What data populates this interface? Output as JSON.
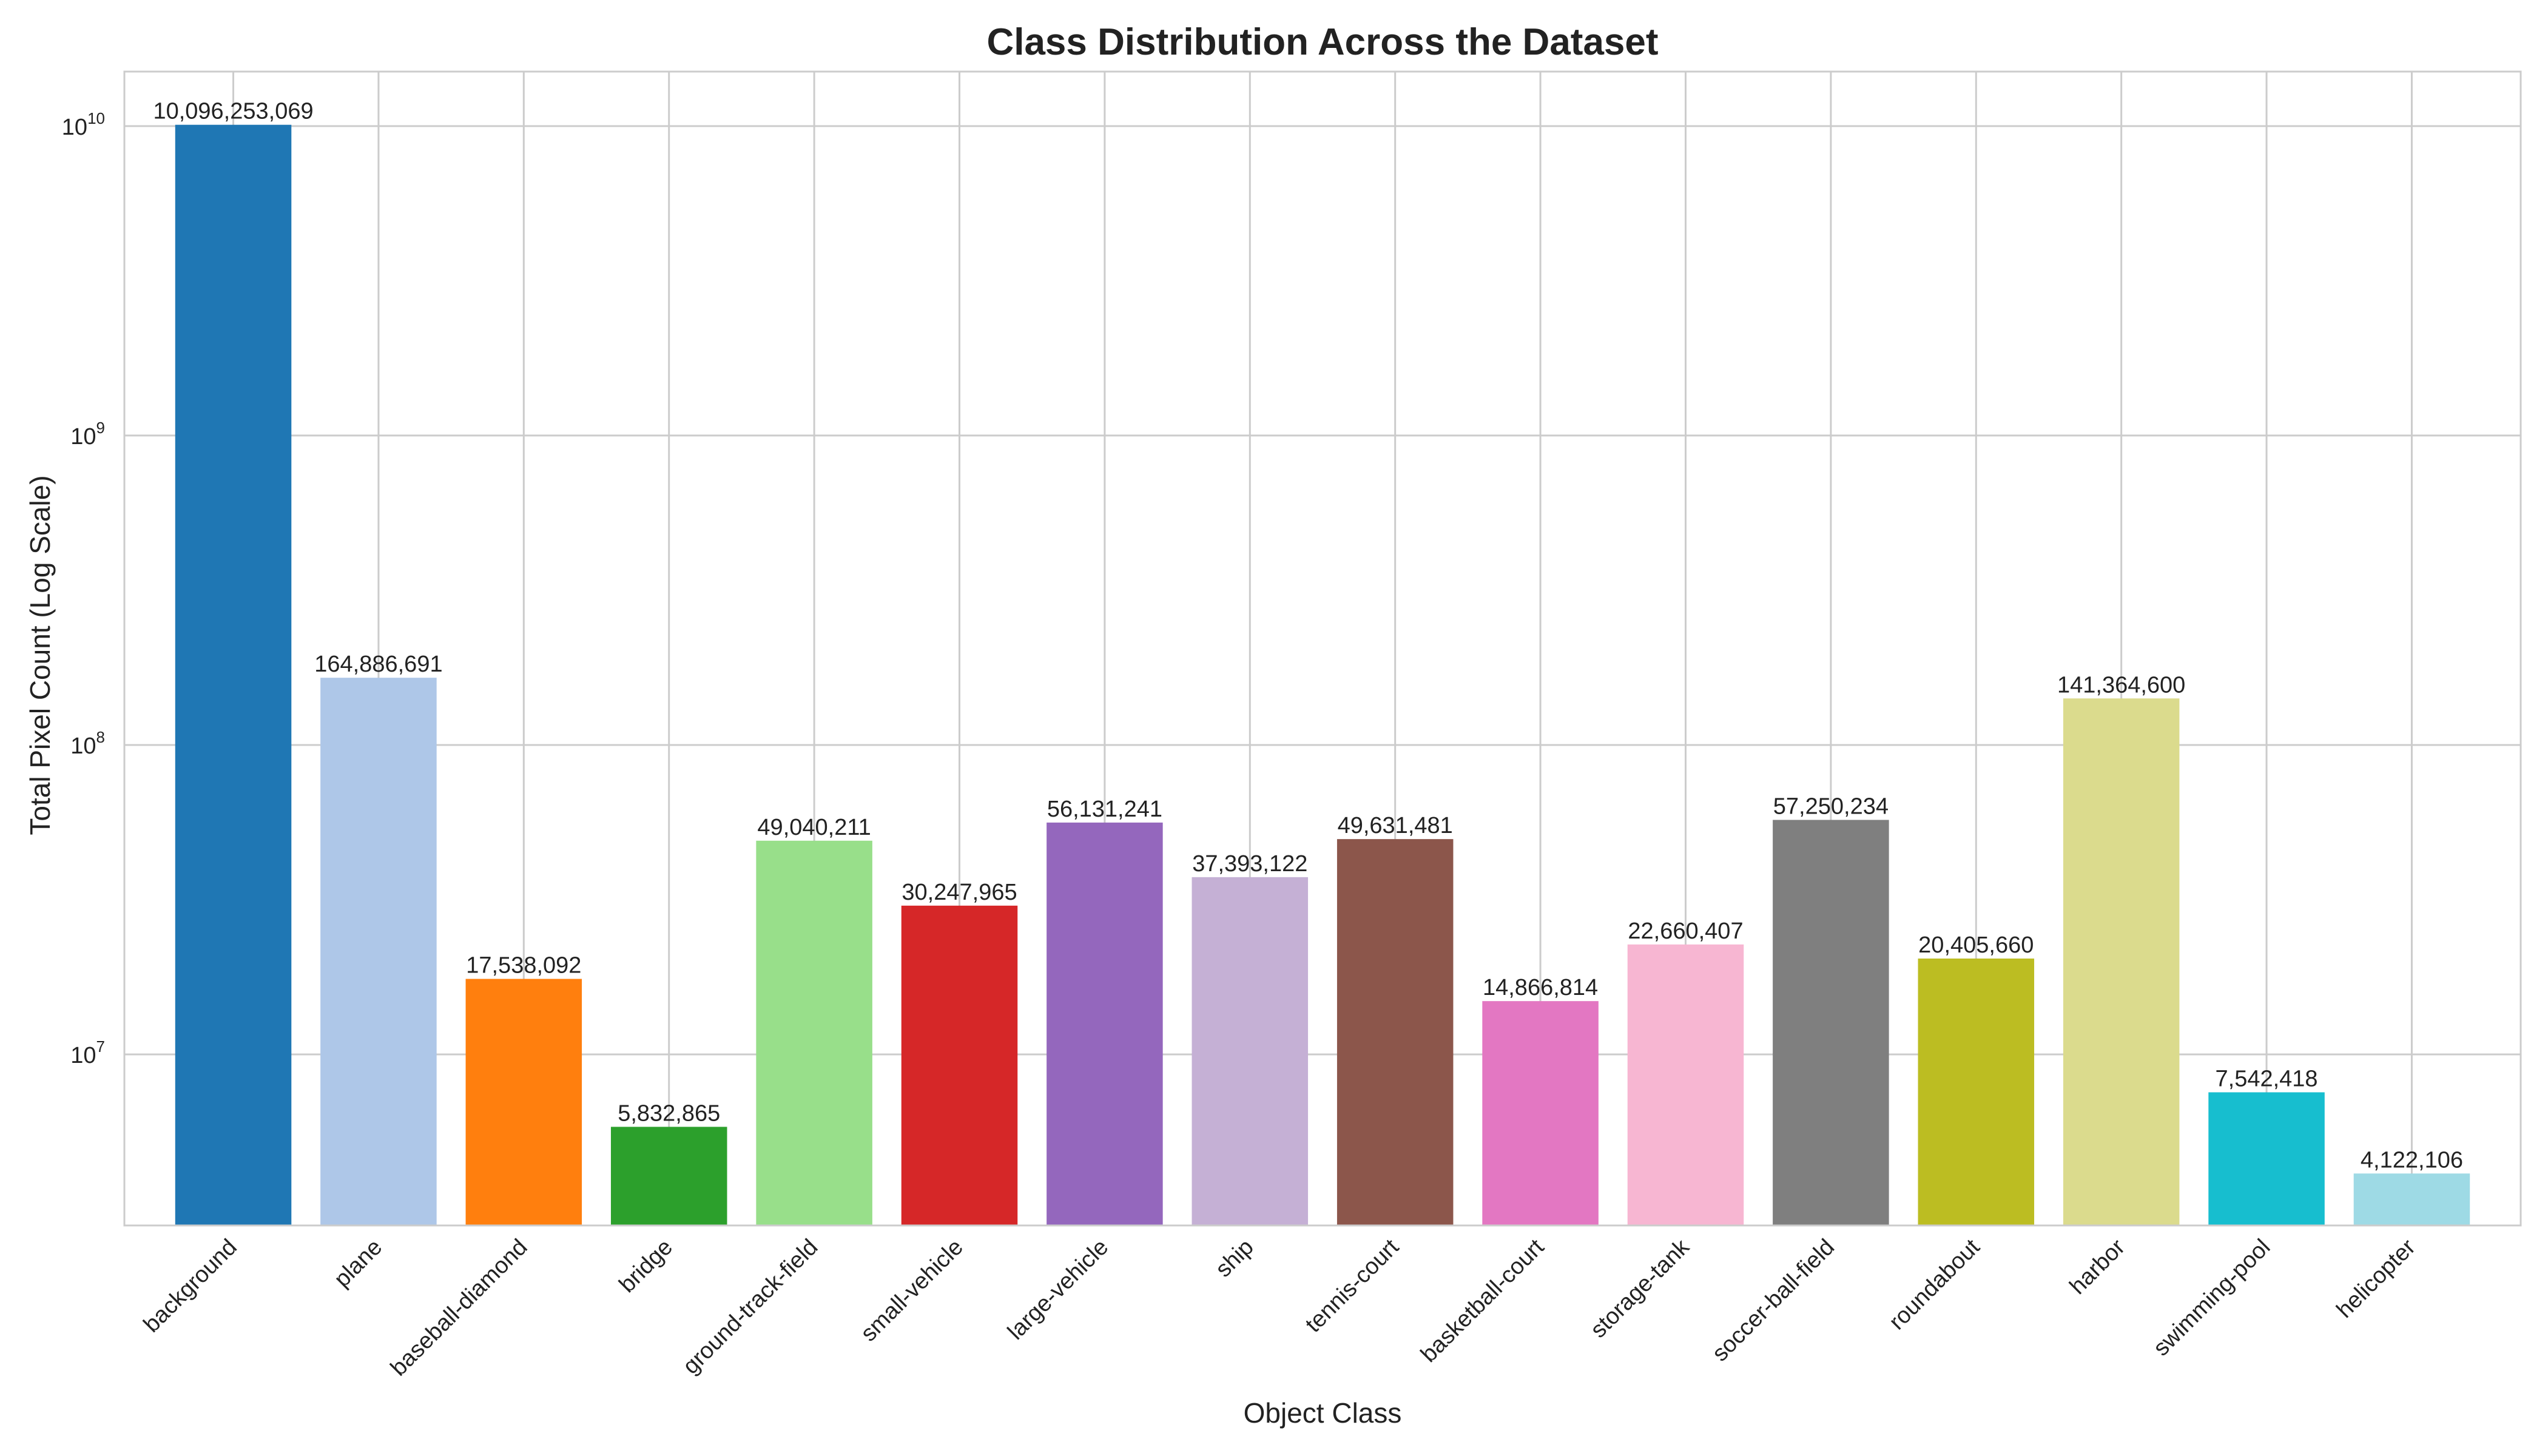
{
  "chart_data": {
    "type": "bar",
    "title": "Class Distribution Across the Dataset",
    "xlabel": "Object Class",
    "ylabel": "Total Pixel Count (Log Scale)",
    "yscale": "log",
    "ylim": [
      2800000,
      15000000000
    ],
    "yticks": [
      {
        "base": "10",
        "exp": "7",
        "value": 10000000
      },
      {
        "base": "10",
        "exp": "8",
        "value": 100000000
      },
      {
        "base": "10",
        "exp": "9",
        "value": 1000000000
      },
      {
        "base": "10",
        "exp": "10",
        "value": 10000000000
      }
    ],
    "grid": true,
    "categories": [
      "background",
      "plane",
      "baseball-diamond",
      "bridge",
      "ground-track-field",
      "small-vehicle",
      "large-vehicle",
      "ship",
      "tennis-court",
      "basketball-court",
      "storage-tank",
      "soccer-ball-field",
      "roundabout",
      "harbor",
      "swimming-pool",
      "helicopter"
    ],
    "values": [
      10096253069,
      164886691,
      17538092,
      5832865,
      49040211,
      30247965,
      56131241,
      37393122,
      49631481,
      14866814,
      22660407,
      57250234,
      20405660,
      141364600,
      7542418,
      4122106
    ],
    "value_labels": [
      "10,096,253,069",
      "164,886,691",
      "17,538,092",
      "5,832,865",
      "49,040,211",
      "30,247,965",
      "56,131,241",
      "37,393,122",
      "49,631,481",
      "14,866,814",
      "22,660,407",
      "57,250,234",
      "20,405,660",
      "141,364,600",
      "7,542,418",
      "4,122,106"
    ],
    "colors": [
      "#1f77b4",
      "#aec7e8",
      "#ff7f0e",
      "#2ca02c",
      "#98df8a",
      "#d62728",
      "#9467bd",
      "#c5b0d5",
      "#8c564b",
      "#e377c2",
      "#f7b6d2",
      "#7f7f7f",
      "#bcbd22",
      "#dbdb8d",
      "#17becf",
      "#9edae5"
    ]
  }
}
